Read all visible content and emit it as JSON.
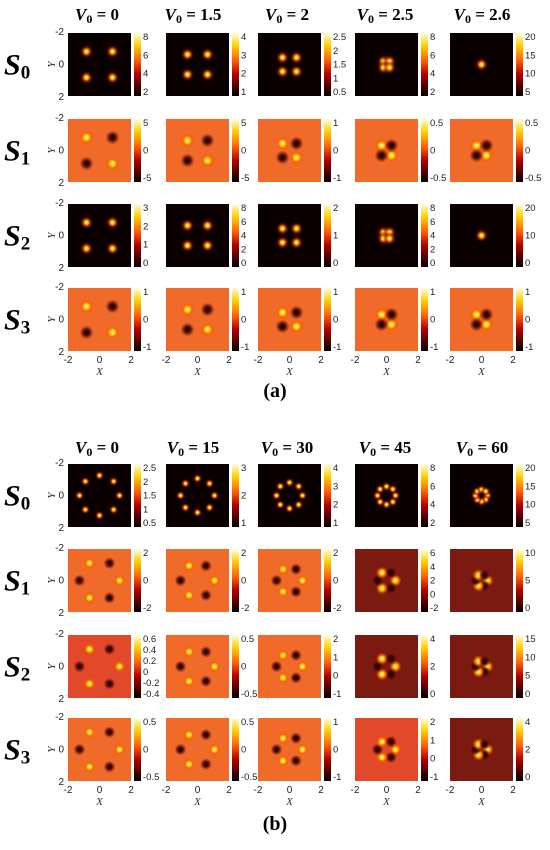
{
  "chart_data": [
    {
      "type": "heatmap",
      "panel_label": "(a)",
      "column_param_symbol": "V",
      "column_param_sub": "0",
      "columns": [
        "V₀ = 0",
        "V₀ = 1.5",
        "V₀ = 2",
        "V₀ = 2.5",
        "V₀ = 2.6"
      ],
      "rows": [
        {
          "label": "S",
          "sub": "0"
        },
        {
          "label": "S",
          "sub": "1"
        },
        {
          "label": "S",
          "sub": "2"
        },
        {
          "label": "S",
          "sub": "3"
        }
      ],
      "xlabel": "X",
      "ylabel": "Y",
      "xlim": [
        -2,
        2
      ],
      "ylim": [
        -2,
        2
      ],
      "x_ticks": [
        "-2",
        "0",
        "2"
      ],
      "y_ticks": [
        "-2",
        "0",
        "2"
      ],
      "colormap": "hot",
      "colorbar_ticks": [
        [
          [
            "8",
            "6",
            "4",
            "2"
          ],
          [
            "4",
            "3",
            "2",
            "1"
          ],
          [
            "2.5",
            "2",
            "1.5",
            "1",
            "0.5"
          ],
          [
            "8",
            "6",
            "4",
            "2"
          ],
          [
            "20",
            "15",
            "10",
            "5"
          ]
        ],
        [
          [
            "5",
            "0",
            "-5"
          ],
          [
            "5",
            "0",
            "-5"
          ],
          [
            "1",
            "0",
            "-1"
          ],
          [
            "0.5",
            "0",
            "-0.5"
          ],
          [
            "0.5",
            "0",
            "-0.5"
          ]
        ],
        [
          [
            "3",
            "2",
            "1",
            "0"
          ],
          [
            "8",
            "6",
            "4",
            "2",
            "0"
          ],
          [
            "2",
            "1",
            "0"
          ],
          [
            "8",
            "6",
            "4",
            "2",
            "0"
          ],
          [
            "20",
            "10",
            "0"
          ]
        ],
        [
          [
            "1",
            "0",
            "-1"
          ],
          [
            "1",
            "0",
            "-1"
          ],
          [
            "1",
            "0",
            "-1"
          ],
          [
            "1",
            "0",
            "-1"
          ],
          [
            "1",
            "0",
            "-1"
          ]
        ]
      ]
    },
    {
      "type": "heatmap",
      "panel_label": "(b)",
      "column_param_symbol": "V",
      "column_param_sub": "0",
      "columns": [
        "V₀ = 0",
        "V₀ = 15",
        "V₀ = 30",
        "V₀ = 45",
        "V₀ = 60"
      ],
      "rows": [
        {
          "label": "S",
          "sub": "0"
        },
        {
          "label": "S",
          "sub": "1"
        },
        {
          "label": "S",
          "sub": "2"
        },
        {
          "label": "S",
          "sub": "3"
        }
      ],
      "xlabel": "X",
      "ylabel": "Y",
      "xlim": [
        -2,
        2
      ],
      "ylim": [
        -2,
        2
      ],
      "x_ticks": [
        "-2",
        "0",
        "2"
      ],
      "y_ticks": [
        "-2",
        "0",
        "2"
      ],
      "colormap": "hot",
      "colorbar_ticks": [
        [
          [
            "2.5",
            "2",
            "1.5",
            "1",
            "0.5"
          ],
          [
            "3",
            "2",
            "1"
          ],
          [
            "4",
            "3",
            "2",
            "1"
          ],
          [
            "8",
            "6",
            "4",
            "2"
          ],
          [
            "20",
            "15",
            "10",
            "5"
          ]
        ],
        [
          [
            "2",
            "0",
            "-2"
          ],
          [
            "2",
            "0",
            "-2"
          ],
          [
            "2",
            "0",
            "-2"
          ],
          [
            "6",
            "4",
            "2",
            "0",
            "-2"
          ],
          [
            "10",
            "5",
            "0"
          ]
        ],
        [
          [
            "0.6",
            "0.4",
            "0.2",
            "0",
            "-0.2",
            "-0.4"
          ],
          [
            "0.5",
            "0",
            "-0.5"
          ],
          [
            "2",
            "1",
            "0",
            "-1"
          ],
          [
            "4",
            "2",
            "0"
          ],
          [
            "15",
            "10",
            "5",
            "0"
          ]
        ],
        [
          [
            "0.5",
            "0",
            "-0.5"
          ],
          [
            "0.5",
            "0",
            "-0.5"
          ],
          [
            "1",
            "0",
            "-1"
          ],
          [
            "2",
            "1",
            "0",
            "-1"
          ],
          [
            "4",
            "2",
            "0"
          ]
        ]
      ]
    }
  ]
}
